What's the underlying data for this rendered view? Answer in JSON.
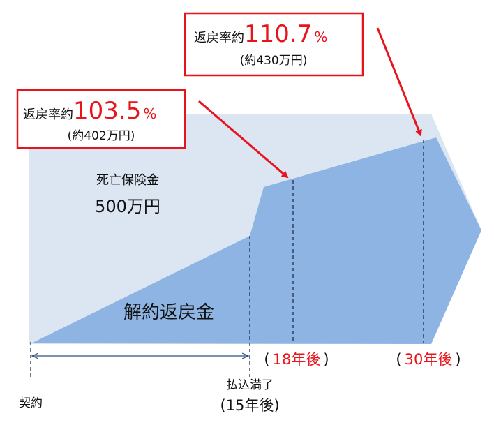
{
  "callouts": [
    {
      "prefix": "返戻率約",
      "rate": "103.5",
      "unit": "%",
      "amount": "(約402万円)"
    },
    {
      "prefix": "返戻率約",
      "rate": "110.7",
      "unit": "%",
      "amount": "(約430万円)"
    }
  ],
  "labels": {
    "death_benefit": "死亡保険金",
    "death_amount": "500万円",
    "surrender": "解約返戻金"
  },
  "timeline": {
    "start": "契約",
    "paid_up": "払込満了",
    "paid_up_year": "(15年後)",
    "markers": [
      {
        "open": "(",
        "text": "18年後",
        "close": ")"
      },
      {
        "open": "(",
        "text": "30年後",
        "close": ")"
      }
    ]
  }
}
